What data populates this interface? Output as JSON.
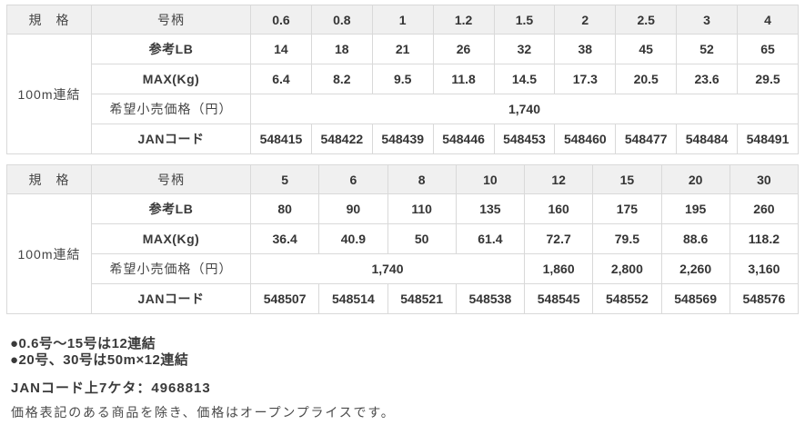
{
  "colors": {
    "header_bg": "#f0f0f0",
    "border": "#d9d9d9",
    "text": "#3c3c3c"
  },
  "table1": {
    "spec_header": "規　格",
    "size_header": "号柄",
    "sizes": [
      "0.6",
      "0.8",
      "1",
      "1.2",
      "1.5",
      "2",
      "2.5",
      "3",
      "4"
    ],
    "spec_value": "100m連結",
    "lb_label": "参考LB",
    "lb_values": [
      "14",
      "18",
      "21",
      "26",
      "32",
      "38",
      "45",
      "52",
      "65"
    ],
    "max_label": "MAX(Kg)",
    "max_values": [
      "6.4",
      "8.2",
      "9.5",
      "11.8",
      "14.5",
      "17.3",
      "20.5",
      "23.6",
      "29.5"
    ],
    "price_label": "希望小売価格（円）",
    "price_value": "1,740",
    "jan_label": "JANコード",
    "jan_values": [
      "548415",
      "548422",
      "548439",
      "548446",
      "548453",
      "548460",
      "548477",
      "548484",
      "548491"
    ]
  },
  "table2": {
    "spec_header": "規　格",
    "size_header": "号柄",
    "sizes": [
      "5",
      "6",
      "8",
      "10",
      "12",
      "15",
      "20",
      "30"
    ],
    "spec_value": "100m連結",
    "lb_label": "参考LB",
    "lb_values": [
      "80",
      "90",
      "110",
      "135",
      "160",
      "175",
      "195",
      "260"
    ],
    "max_label": "MAX(Kg)",
    "max_values": [
      "36.4",
      "40.9",
      "50",
      "61.4",
      "72.7",
      "79.5",
      "88.6",
      "118.2"
    ],
    "price_label": "希望小売価格（円）",
    "price_merged_value": "1,740",
    "price_values": [
      "1,860",
      "2,800",
      "2,260",
      "3,160"
    ],
    "jan_label": "JANコード",
    "jan_values": [
      "548507",
      "548514",
      "548521",
      "548538",
      "548545",
      "548552",
      "548569",
      "548576"
    ]
  },
  "notes": {
    "bullet1": "●0.6号〜15号は12連結",
    "bullet2": "●20号、30号は50m×12連結",
    "jan_prefix": "JANコード上7ケタ：4968813",
    "price_note": "価格表記のある商品を除き、価格はオープンプライスです。"
  }
}
